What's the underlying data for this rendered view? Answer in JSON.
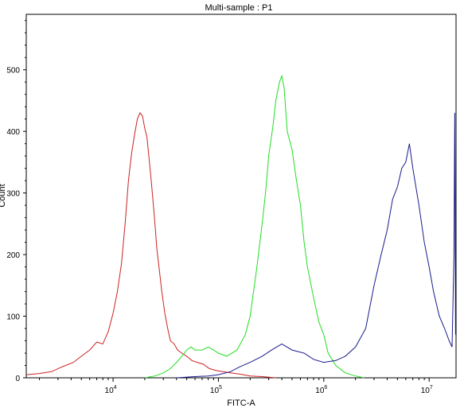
{
  "chart_data": {
    "type": "line",
    "title": "Multi-sample : P1",
    "xlabel": "FITC-A",
    "ylabel": "Count",
    "x_scale": "log",
    "xlim": [
      1500,
      18000000
    ],
    "ylim": [
      0,
      590
    ],
    "x_ticks": [
      {
        "value": 10000,
        "base": "10",
        "exp": "4"
      },
      {
        "value": 100000,
        "base": "10",
        "exp": "5"
      },
      {
        "value": 1000000,
        "base": "10",
        "exp": "6"
      },
      {
        "value": 10000000,
        "base": "10",
        "exp": "7"
      }
    ],
    "y_ticks": [
      0,
      100,
      200,
      300,
      400,
      500
    ],
    "grid": false,
    "series": [
      {
        "color": "#cc2222",
        "x": [
          1500,
          2000,
          2600,
          3300,
          4200,
          5000,
          6000,
          7000,
          8000,
          9000,
          10000,
          11000,
          12000,
          13000,
          14000,
          15000,
          16000,
          17000,
          18000,
          19000,
          20000,
          21000,
          22000,
          23000,
          24000,
          25000,
          26000,
          27500,
          29000,
          31000,
          33000,
          35000,
          38000,
          41000,
          45000,
          50000,
          56000,
          63000,
          72000,
          82000,
          95000,
          110000,
          130000,
          160000,
          200000,
          260000,
          350000
        ],
        "y": [
          5,
          7,
          10,
          18,
          25,
          35,
          45,
          58,
          55,
          75,
          105,
          140,
          185,
          250,
          320,
          365,
          395,
          420,
          430,
          425,
          405,
          390,
          355,
          320,
          285,
          250,
          210,
          175,
          140,
          105,
          80,
          60,
          55,
          45,
          40,
          35,
          28,
          25,
          22,
          15,
          12,
          10,
          8,
          6,
          3,
          2,
          0
        ]
      },
      {
        "color": "#22dd22",
        "x": [
          20000,
          25000,
          30000,
          35000,
          40000,
          45000,
          50000,
          55000,
          60000,
          70000,
          80000,
          90000,
          100000,
          120000,
          150000,
          180000,
          200000,
          230000,
          260000,
          280000,
          300000,
          330000,
          350000,
          380000,
          400000,
          420000,
          450000,
          500000,
          550000,
          600000,
          650000,
          700000,
          800000,
          900000,
          1000000,
          1100000,
          1300000,
          1600000,
          2000000,
          2400000
        ],
        "y": [
          0,
          3,
          8,
          15,
          25,
          35,
          45,
          50,
          45,
          45,
          50,
          45,
          40,
          35,
          45,
          70,
          100,
          175,
          250,
          300,
          360,
          410,
          450,
          480,
          490,
          470,
          400,
          370,
          320,
          280,
          220,
          180,
          130,
          90,
          70,
          40,
          20,
          8,
          3,
          0
        ]
      },
      {
        "color": "#1a1a8c",
        "x": [
          40000,
          60000,
          80000,
          100000,
          130000,
          160000,
          200000,
          260000,
          320000,
          400000,
          500000,
          650000,
          800000,
          1000000,
          1300000,
          1600000,
          2000000,
          2500000,
          3000000,
          3500000,
          4000000,
          4500000,
          5000000,
          5500000,
          6000000,
          6500000,
          7000000,
          8000000,
          9000000,
          10000000,
          11000000,
          12500000,
          14000000,
          15500000,
          16500000,
          17200000,
          17500000,
          17800000
        ],
        "y": [
          0,
          2,
          3,
          5,
          10,
          18,
          25,
          35,
          45,
          55,
          45,
          40,
          30,
          25,
          28,
          35,
          50,
          80,
          150,
          200,
          240,
          290,
          310,
          340,
          350,
          380,
          340,
          280,
          220,
          180,
          140,
          100,
          80,
          60,
          50,
          200,
          430,
          70
        ]
      }
    ]
  }
}
